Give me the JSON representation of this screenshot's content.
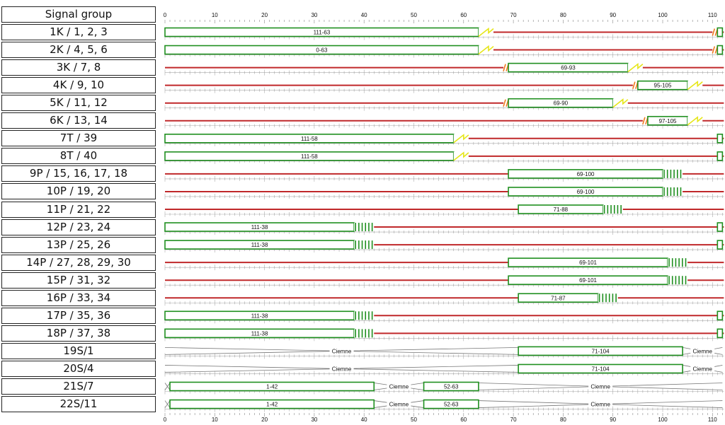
{
  "header": {
    "label": "Signal group"
  },
  "axis": {
    "min": 0,
    "max": 112,
    "ticks": [
      0,
      10,
      20,
      30,
      40,
      50,
      60,
      70,
      80,
      90,
      100,
      110
    ]
  },
  "colors": {
    "red": "#c0282a",
    "green": "#1f8f1f",
    "amber": "#e6e61a",
    "orange": "#f07a1e",
    "gray": "#777777"
  },
  "chart_data": {
    "type": "timeline",
    "cycle": 112,
    "rows": [
      {
        "label": "1K / 1, 2, 3",
        "kind": "vehicle",
        "greens": [
          {
            "start": 0,
            "end": 63,
            "text": "111-63"
          },
          {
            "start": 111,
            "end": 112,
            "text": ""
          }
        ],
        "ambers": [
          {
            "start": 63,
            "end": 66
          }
        ],
        "redAmbers": [
          {
            "start": 110,
            "end": 111
          }
        ]
      },
      {
        "label": "2K / 4, 5, 6",
        "kind": "vehicle",
        "greens": [
          {
            "start": 0,
            "end": 63,
            "text": "0-63"
          },
          {
            "start": 111,
            "end": 112,
            "text": ""
          }
        ],
        "ambers": [
          {
            "start": 63,
            "end": 66
          }
        ],
        "redAmbers": [
          {
            "start": 110,
            "end": 111
          }
        ]
      },
      {
        "label": "3K / 7, 8",
        "kind": "vehicle",
        "greens": [
          {
            "start": 69,
            "end": 93,
            "text": "69-93"
          }
        ],
        "ambers": [
          {
            "start": 93,
            "end": 96
          }
        ],
        "redAmbers": [
          {
            "start": 68,
            "end": 69
          }
        ]
      },
      {
        "label": "4K / 9, 10",
        "kind": "vehicle",
        "greens": [
          {
            "start": 95,
            "end": 105,
            "text": "95-105"
          }
        ],
        "ambers": [
          {
            "start": 105,
            "end": 108
          }
        ],
        "redAmbers": [
          {
            "start": 94,
            "end": 95
          }
        ]
      },
      {
        "label": "5K / 11, 12",
        "kind": "vehicle",
        "greens": [
          {
            "start": 69,
            "end": 90,
            "text": "69-90"
          }
        ],
        "ambers": [
          {
            "start": 90,
            "end": 93
          }
        ],
        "redAmbers": [
          {
            "start": 68,
            "end": 69
          }
        ]
      },
      {
        "label": "6K / 13, 14",
        "kind": "vehicle",
        "greens": [
          {
            "start": 97,
            "end": 105,
            "text": "97-105"
          }
        ],
        "ambers": [
          {
            "start": 105,
            "end": 108
          }
        ],
        "redAmbers": [
          {
            "start": 96,
            "end": 97
          }
        ]
      },
      {
        "label": "7T / 39",
        "kind": "vehicle",
        "greens": [
          {
            "start": 0,
            "end": 58,
            "text": "111-58"
          },
          {
            "start": 111,
            "end": 112,
            "text": ""
          }
        ],
        "ambers": [
          {
            "start": 58,
            "end": 61
          }
        ],
        "redAmbers": []
      },
      {
        "label": "8T / 40",
        "kind": "vehicle",
        "greens": [
          {
            "start": 0,
            "end": 58,
            "text": "111-58"
          },
          {
            "start": 111,
            "end": 112,
            "text": ""
          }
        ],
        "ambers": [
          {
            "start": 58,
            "end": 61
          }
        ],
        "redAmbers": []
      },
      {
        "label": "9P / 15, 16, 17, 18",
        "kind": "ped",
        "greens": [
          {
            "start": 69,
            "end": 100,
            "text": "69-100"
          }
        ],
        "flash": [
          {
            "start": 100,
            "end": 104
          }
        ]
      },
      {
        "label": "10P / 19, 20",
        "kind": "ped",
        "greens": [
          {
            "start": 69,
            "end": 100,
            "text": "69-100"
          }
        ],
        "flash": [
          {
            "start": 100,
            "end": 104
          }
        ]
      },
      {
        "label": "11P / 21, 22",
        "kind": "ped",
        "greens": [
          {
            "start": 71,
            "end": 88,
            "text": "71-88"
          }
        ],
        "flash": [
          {
            "start": 88,
            "end": 92
          }
        ]
      },
      {
        "label": "12P / 23, 24",
        "kind": "ped",
        "greens": [
          {
            "start": 0,
            "end": 38,
            "text": "111-38"
          },
          {
            "start": 111,
            "end": 112,
            "text": ""
          }
        ],
        "flash": [
          {
            "start": 38,
            "end": 42
          }
        ]
      },
      {
        "label": "13P / 25, 26",
        "kind": "ped",
        "greens": [
          {
            "start": 0,
            "end": 38,
            "text": "111-38"
          },
          {
            "start": 111,
            "end": 112,
            "text": ""
          }
        ],
        "flash": [
          {
            "start": 38,
            "end": 42
          }
        ]
      },
      {
        "label": "14P / 27, 28, 29, 30",
        "kind": "ped",
        "greens": [
          {
            "start": 69,
            "end": 101,
            "text": "69-101"
          }
        ],
        "flash": [
          {
            "start": 101,
            "end": 105
          }
        ]
      },
      {
        "label": "15P / 31, 32",
        "kind": "ped",
        "greens": [
          {
            "start": 69,
            "end": 101,
            "text": "69-101"
          }
        ],
        "flash": [
          {
            "start": 101,
            "end": 105
          }
        ]
      },
      {
        "label": "16P / 33, 34",
        "kind": "ped",
        "greens": [
          {
            "start": 71,
            "end": 87,
            "text": "71-87"
          }
        ],
        "flash": [
          {
            "start": 87,
            "end": 91
          }
        ]
      },
      {
        "label": "17P / 35, 36",
        "kind": "ped",
        "greens": [
          {
            "start": 0,
            "end": 38,
            "text": "111-38"
          },
          {
            "start": 111,
            "end": 112,
            "text": ""
          }
        ],
        "flash": [
          {
            "start": 38,
            "end": 42
          }
        ]
      },
      {
        "label": "18P / 37, 38",
        "kind": "ped",
        "greens": [
          {
            "start": 0,
            "end": 38,
            "text": "111-38"
          },
          {
            "start": 111,
            "end": 112,
            "text": ""
          }
        ],
        "flash": [
          {
            "start": 38,
            "end": 42
          }
        ]
      },
      {
        "label": "19S/1",
        "kind": "signal",
        "greens": [
          {
            "start": 71,
            "end": 104,
            "text": "71-104"
          }
        ],
        "darks": [
          {
            "start": 0,
            "end": 71,
            "text": "Ciemne"
          },
          {
            "start": 104,
            "end": 112,
            "text": "Ciemne"
          }
        ]
      },
      {
        "label": "20S/4",
        "kind": "signal",
        "greens": [
          {
            "start": 71,
            "end": 104,
            "text": "71-104"
          }
        ],
        "darks": [
          {
            "start": 0,
            "end": 71,
            "text": "Ciemne"
          },
          {
            "start": 104,
            "end": 112,
            "text": "Ciemne"
          }
        ]
      },
      {
        "label": "21S/7",
        "kind": "signal",
        "greens": [
          {
            "start": 1,
            "end": 42,
            "text": "1-42"
          },
          {
            "start": 52,
            "end": 63,
            "text": "52-63"
          }
        ],
        "darks": [
          {
            "start": 0,
            "end": 1,
            "text": ""
          },
          {
            "start": 42,
            "end": 52,
            "text": "Ciemne"
          },
          {
            "start": 63,
            "end": 112,
            "text": "Ciemne"
          }
        ]
      },
      {
        "label": "22S/11",
        "kind": "signal",
        "greens": [
          {
            "start": 1,
            "end": 42,
            "text": "1-42"
          },
          {
            "start": 52,
            "end": 63,
            "text": "52-63"
          }
        ],
        "darks": [
          {
            "start": 0,
            "end": 1,
            "text": ""
          },
          {
            "start": 42,
            "end": 52,
            "text": "Ciemne"
          },
          {
            "start": 63,
            "end": 112,
            "text": "Ciemne"
          }
        ]
      }
    ]
  }
}
